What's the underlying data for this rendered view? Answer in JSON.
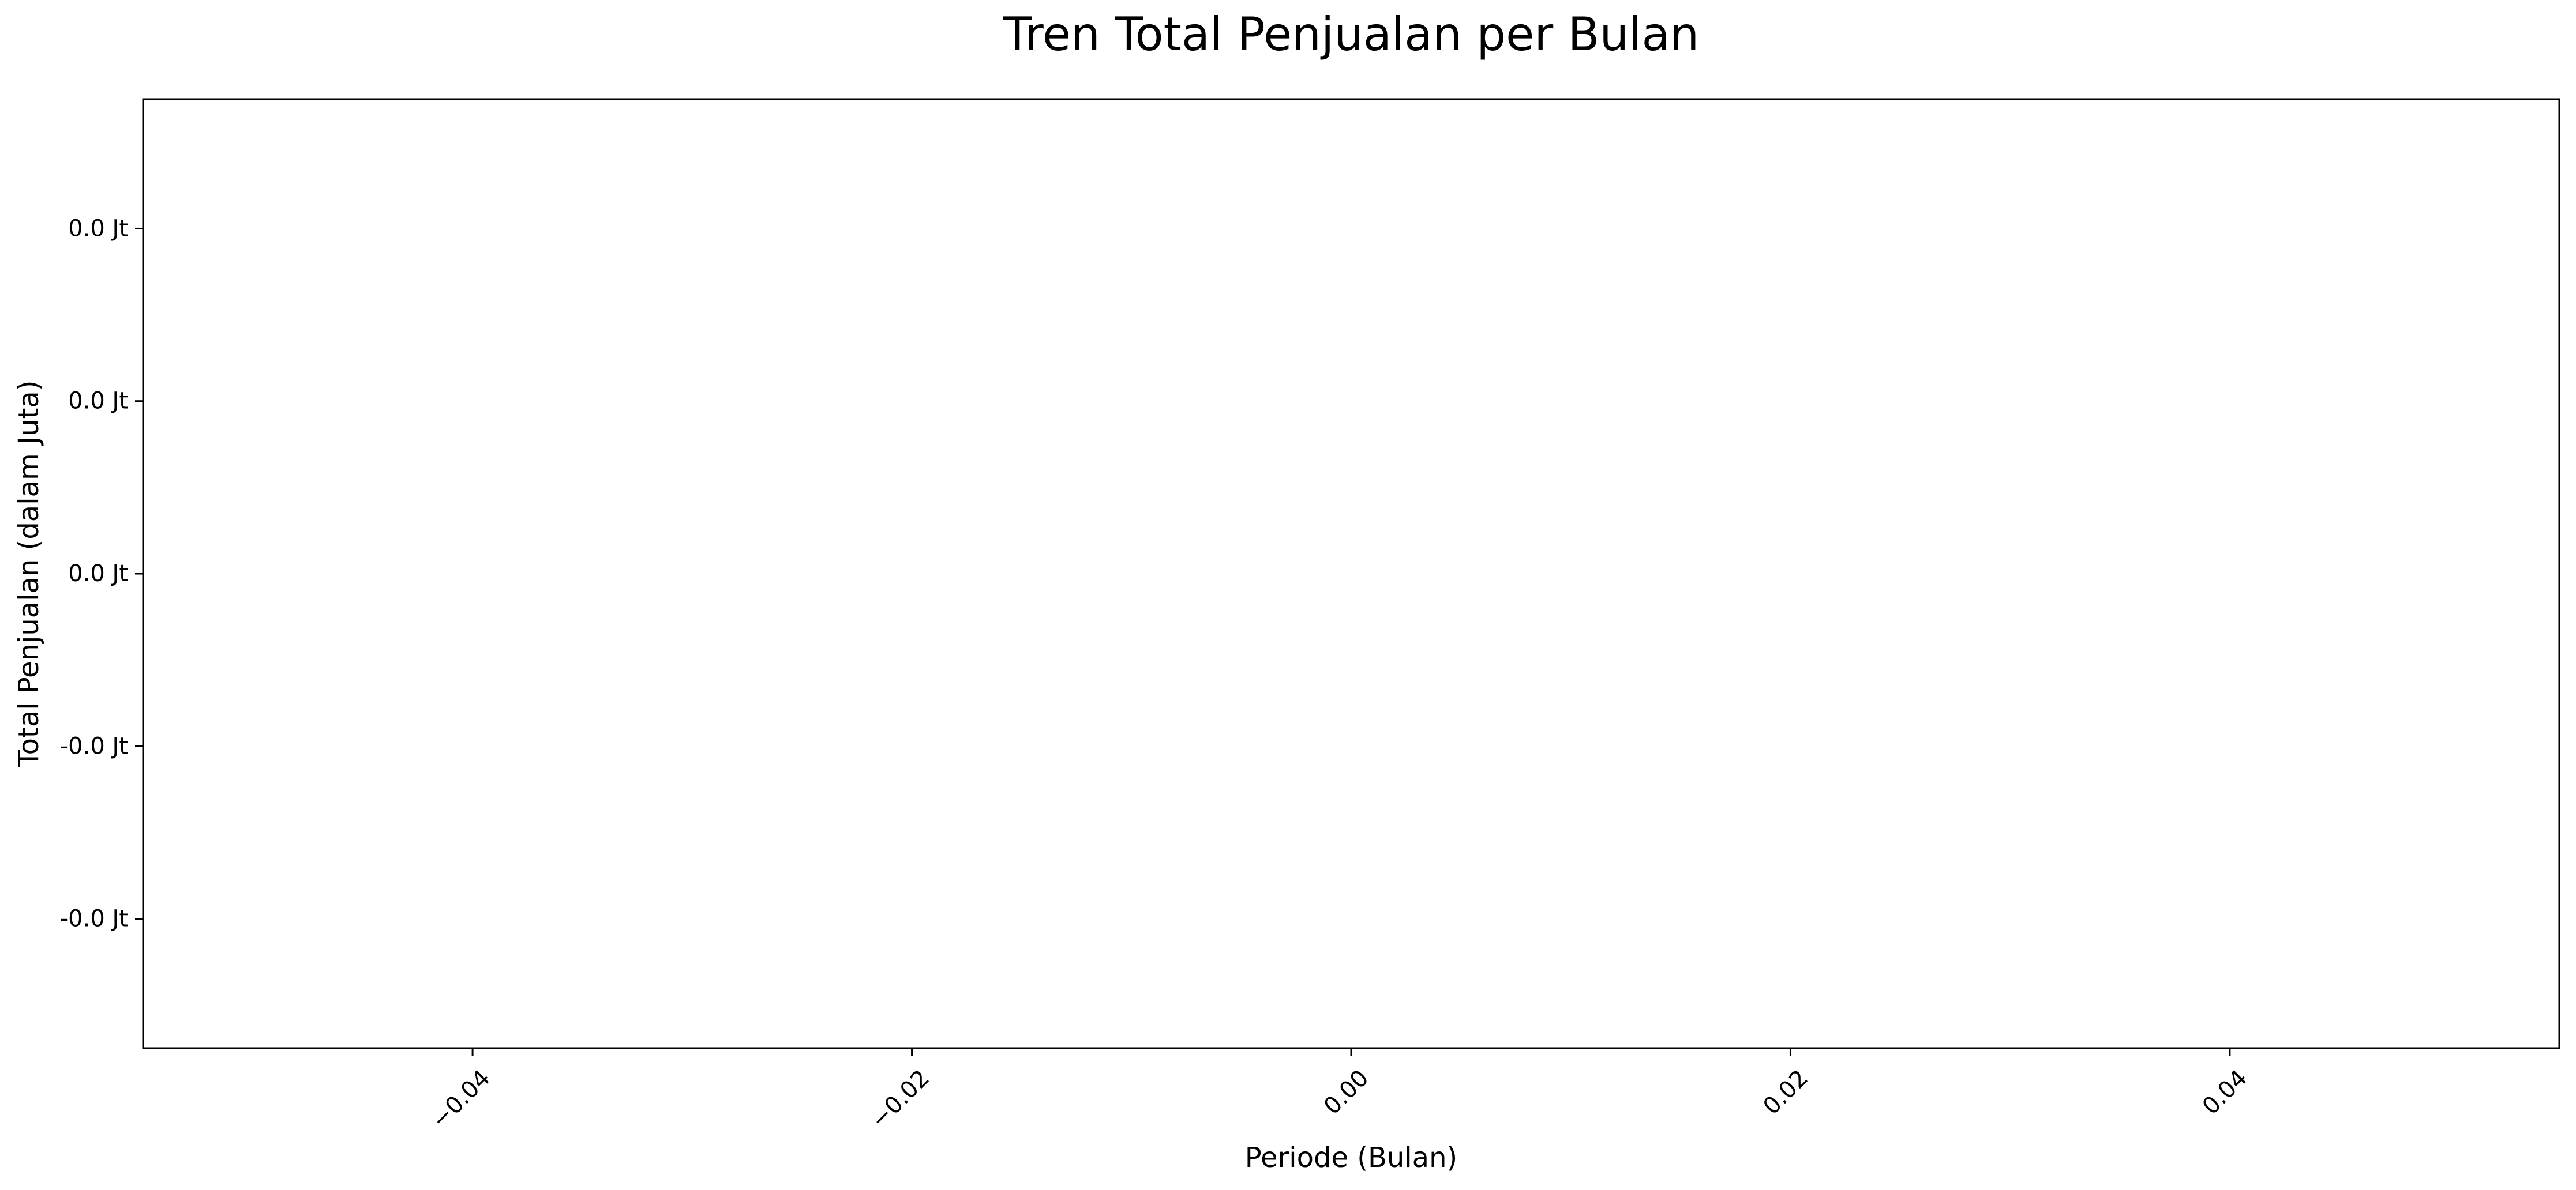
{
  "chart_data": {
    "type": "line",
    "title": "Tren Total Penjualan per Bulan",
    "xlabel": "Periode (Bulan)",
    "ylabel": "Total Penjualan (dalam Juta)",
    "xlim": [
      -0.055,
      0.055
    ],
    "ylim": [
      -0.055,
      0.055
    ],
    "x_ticks": [
      -0.04,
      -0.02,
      0.0,
      0.02,
      0.04
    ],
    "x_tick_labels": [
      "−0.04",
      "−0.02",
      "0.00",
      "0.02",
      "0.04"
    ],
    "y_ticks": [
      0.04,
      0.02,
      0.0,
      -0.02,
      -0.04
    ],
    "y_tick_labels": [
      "0.0 Jt",
      "0.0 Jt",
      "0.0 Jt",
      "-0.0 Jt",
      "-0.0 Jt"
    ],
    "x_tick_rotation_deg": -45,
    "series": [],
    "grid": false,
    "legend": "none"
  }
}
